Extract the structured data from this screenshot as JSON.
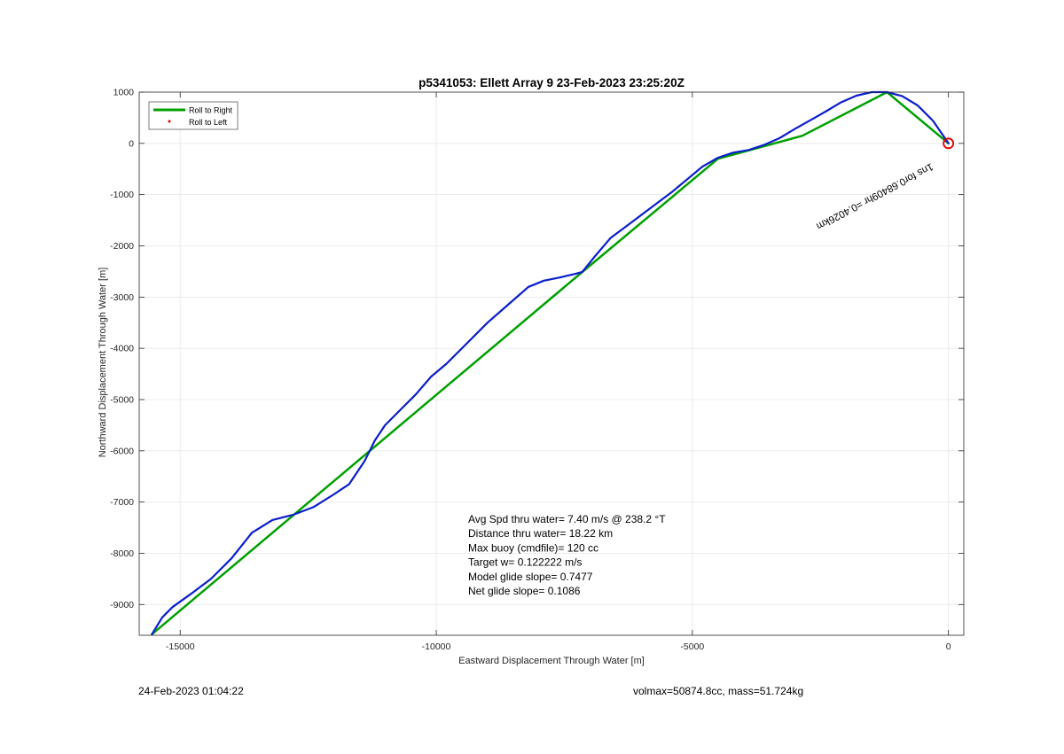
{
  "chart_data": {
    "type": "line",
    "title": "p5341053: Ellett Array 9 23-Feb-2023 23:25:20Z",
    "xlabel": "Eastward Displacement Through Water [m]",
    "ylabel": "Northward Displacement Through Water [m]",
    "xlim": [
      -15800,
      300
    ],
    "ylim": [
      -9600,
      1000
    ],
    "xticks": [
      -15000,
      -10000,
      -5000,
      0
    ],
    "xtick_labels": [
      "-15000",
      "-10000",
      "-5000",
      "0"
    ],
    "yticks": [
      1000,
      0,
      -1000,
      -2000,
      -3000,
      -4000,
      -5000,
      -6000,
      -7000,
      -8000,
      -9000
    ],
    "ytick_labels": [
      "1000",
      "0",
      "-1000",
      "-2000",
      "-3000",
      "-4000",
      "-5000",
      "-6000",
      "-7000",
      "-8000",
      "-9000"
    ],
    "grid": true,
    "legend_position": "top-left",
    "legend": [
      {
        "label": "Roll to Right",
        "color": "#00a000",
        "marker": "line"
      },
      {
        "label": "Roll to Left",
        "color": "#e00000",
        "marker": "dot"
      }
    ],
    "series": [
      {
        "name": "Roll to Right",
        "color": "#00a000",
        "x": [
          -15550,
          -7150,
          -4500,
          -2850,
          -1200,
          0
        ],
        "y": [
          -9580,
          -2510,
          -300,
          150,
          1000,
          0
        ]
      },
      {
        "color": "#0a1ecc",
        "x": [
          -15550,
          -15350,
          -15150,
          -14800,
          -14400,
          -14000,
          -13600,
          -13200,
          -12800,
          -12400,
          -12000,
          -11700,
          -11400,
          -11200,
          -11000,
          -10700,
          -10400,
          -10100,
          -9800,
          -9400,
          -9000,
          -8600,
          -8200,
          -7900,
          -7600,
          -7300,
          -7150,
          -6900,
          -6600,
          -6200,
          -5800,
          -5400,
          -5100,
          -4800,
          -4500,
          -4200,
          -3900,
          -3600,
          -3300,
          -3000,
          -2700,
          -2400,
          -2100,
          -1800,
          -1500,
          -1200,
          -900,
          -600,
          -300,
          -100,
          0
        ],
        "y": [
          -9580,
          -9250,
          -9050,
          -8800,
          -8500,
          -8100,
          -7600,
          -7350,
          -7250,
          -7100,
          -6850,
          -6650,
          -6200,
          -5800,
          -5500,
          -5200,
          -4900,
          -4550,
          -4300,
          -3900,
          -3500,
          -3150,
          -2800,
          -2680,
          -2620,
          -2550,
          -2510,
          -2200,
          -1850,
          -1550,
          -1250,
          -950,
          -700,
          -450,
          -280,
          -180,
          -130,
          -30,
          100,
          280,
          450,
          620,
          800,
          930,
          1000,
          1000,
          920,
          740,
          440,
          150,
          0
        ]
      }
    ],
    "markers": [
      {
        "name": "start-circle",
        "x": 0,
        "y": 0,
        "color": "#e00000"
      }
    ],
    "annotations": {
      "track_label": "1ns for0.68409hr =0.4026km",
      "stats": [
        "Avg Spd thru water=  7.40 m/s @ 238.2 °T",
        "Distance thru water= 18.22 km",
        "Max buoy (cmdfile)= 120 cc",
        "Target w= 0.122222 m/s",
        "Model glide slope= 0.7477",
        "Net glide slope= 0.1086"
      ]
    }
  },
  "footer": {
    "date": "24-Feb-2023 01:04:22",
    "volmax": "volmax=50874.8cc, mass=51.724kg"
  }
}
